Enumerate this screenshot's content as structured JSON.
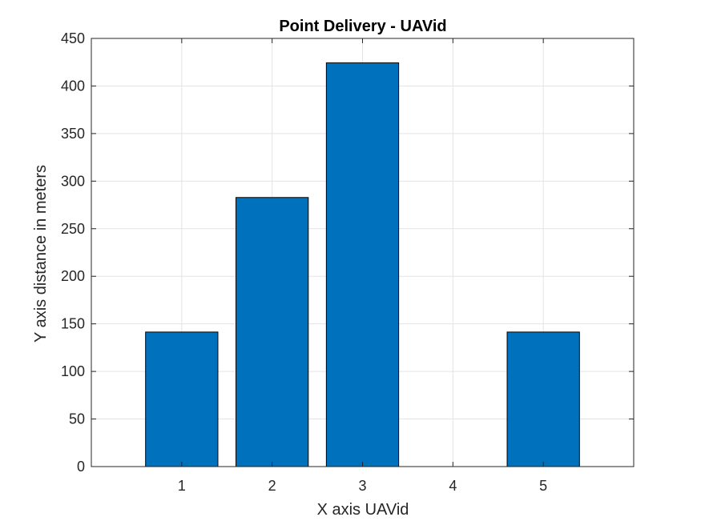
{
  "chart_data": {
    "type": "bar",
    "title": "Point Delivery - UAVid",
    "xlabel": "X axis UAVid",
    "ylabel": "Y axis distance in meters",
    "categories": [
      "1",
      "2",
      "3",
      "4",
      "5"
    ],
    "x": [
      1,
      2,
      3,
      4,
      5
    ],
    "values": [
      141.4,
      282.8,
      424.3,
      0,
      141.4
    ],
    "xlim": [
      0,
      6
    ],
    "ylim": [
      0,
      450
    ],
    "yticks": [
      0,
      50,
      100,
      150,
      200,
      250,
      300,
      350,
      400,
      450
    ],
    "grid": true,
    "legend": "none",
    "colors": {
      "bar_fill": "#0072BD",
      "bar_edge": "#000000",
      "grid": "#e3e3e3",
      "axis": "#262626"
    }
  }
}
